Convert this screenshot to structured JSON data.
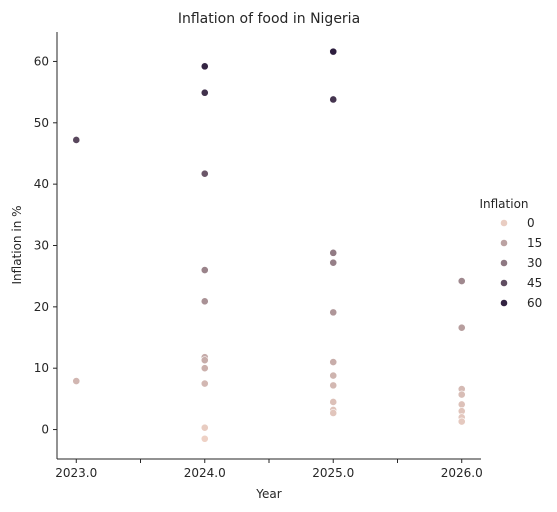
{
  "chart_data": {
    "type": "scatter",
    "title": "Inflation of food in Nigeria",
    "xlabel": "Year",
    "ylabel": "Inflation in %",
    "xlim": [
      2022.85,
      2026.15
    ],
    "ylim": [
      -4.8,
      64.8
    ],
    "x_ticks": [
      2023.0,
      2023.5,
      2024.0,
      2024.5,
      2025.0,
      2025.5,
      2026.0
    ],
    "x_tick_labels": [
      "2023.0",
      "",
      "2024.0",
      "",
      "2025.0",
      "",
      "2026.0"
    ],
    "y_ticks": [
      0,
      10,
      20,
      30,
      40,
      50,
      60
    ],
    "y_tick_labels": [
      "0",
      "10",
      "20",
      "30",
      "40",
      "50",
      "60"
    ],
    "grid": false,
    "hue": {
      "legend_title": "Inflation",
      "legend_position": "right",
      "legend_values": [
        0,
        15,
        30,
        45,
        60
      ],
      "legend_labels": [
        "0",
        "15",
        "30",
        "45",
        "60"
      ],
      "range": [
        -1.5,
        61.5
      ],
      "color_low": "#eed1c5",
      "color_high": "#2d1e3e"
    },
    "points": [
      {
        "x": 2023.0,
        "y": 47.2
      },
      {
        "x": 2023.0,
        "y": 7.9
      },
      {
        "x": 2024.0,
        "y": 59.2
      },
      {
        "x": 2024.0,
        "y": 54.9
      },
      {
        "x": 2024.0,
        "y": 41.7
      },
      {
        "x": 2024.0,
        "y": 26.0
      },
      {
        "x": 2024.0,
        "y": 20.9
      },
      {
        "x": 2024.0,
        "y": 11.8
      },
      {
        "x": 2024.0,
        "y": 11.3
      },
      {
        "x": 2024.0,
        "y": 10.0
      },
      {
        "x": 2024.0,
        "y": 7.5
      },
      {
        "x": 2024.0,
        "y": 0.3
      },
      {
        "x": 2024.0,
        "y": -1.5
      },
      {
        "x": 2025.0,
        "y": 61.6
      },
      {
        "x": 2025.0,
        "y": 53.8
      },
      {
        "x": 2025.0,
        "y": 28.8
      },
      {
        "x": 2025.0,
        "y": 27.2
      },
      {
        "x": 2025.0,
        "y": 19.1
      },
      {
        "x": 2025.0,
        "y": 11.0
      },
      {
        "x": 2025.0,
        "y": 8.8
      },
      {
        "x": 2025.0,
        "y": 7.2
      },
      {
        "x": 2025.0,
        "y": 4.5
      },
      {
        "x": 2025.0,
        "y": 3.2
      },
      {
        "x": 2025.0,
        "y": 2.7
      },
      {
        "x": 2026.0,
        "y": 24.2
      },
      {
        "x": 2026.0,
        "y": 16.6
      },
      {
        "x": 2026.0,
        "y": 6.6
      },
      {
        "x": 2026.0,
        "y": 5.7
      },
      {
        "x": 2026.0,
        "y": 4.1
      },
      {
        "x": 2026.0,
        "y": 3.0
      },
      {
        "x": 2026.0,
        "y": 2.0
      },
      {
        "x": 2026.0,
        "y": 1.3
      }
    ]
  }
}
